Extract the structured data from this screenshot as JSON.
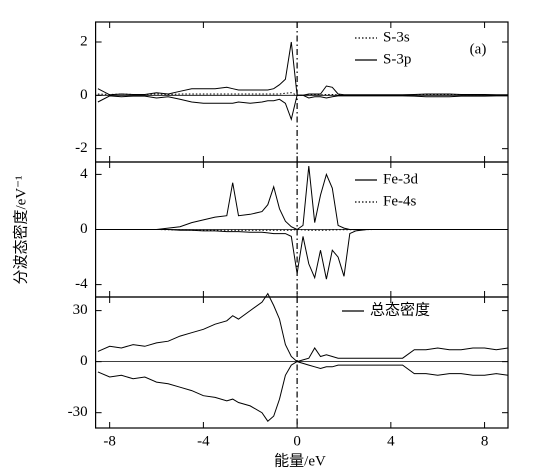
{
  "chart_data": [
    {
      "type": "line",
      "annotation": "(a)",
      "x": [
        -8.5,
        -8,
        -7.5,
        -7,
        -6.5,
        -6,
        -5.5,
        -5,
        -4.5,
        -4,
        -3.5,
        -3,
        -2.75,
        -2.5,
        -2,
        -1.5,
        -1.25,
        -1,
        -0.75,
        -0.5,
        -0.25,
        0,
        0.25,
        0.5,
        0.75,
        1,
        1.25,
        1.5,
        1.75,
        2,
        2.25,
        2.5,
        3,
        3.5,
        4,
        4.5,
        5,
        5.5,
        6,
        6.5,
        7,
        7.5,
        8,
        8.5,
        9
      ],
      "xlim": [
        -8.6,
        9
      ],
      "ylim": [
        -2.5,
        2.75
      ],
      "yticks": [
        -2,
        0,
        2
      ],
      "series": [
        {
          "name": "S-3s",
          "color": "#000000",
          "dash": "dotted",
          "values": [
            0.05,
            0.03,
            0.05,
            0.03,
            0.03,
            0.05,
            0.03,
            0.05,
            0.05,
            0.05,
            0.05,
            0.05,
            0.05,
            0.05,
            0.05,
            0.05,
            0.05,
            0.05,
            0.05,
            0.08,
            0.1,
            0,
            0,
            0.02,
            0.02,
            0.02,
            0.03,
            0.03,
            0.02,
            0.01,
            0.01,
            0.01,
            0.01,
            0.01,
            0.01,
            0.01,
            0.01,
            0.02,
            0.02,
            0.02,
            0.01,
            0.01,
            0.01,
            0.01,
            0.01
          ]
        },
        {
          "name": "S-3p",
          "color": "#000000",
          "dash": "solid",
          "values": [
            0.25,
            0.02,
            0.05,
            0.03,
            0.03,
            0.1,
            0.05,
            0.15,
            0.25,
            0.25,
            0.25,
            0.3,
            0.25,
            0.2,
            0.2,
            0.2,
            0.2,
            0.25,
            0.4,
            0.6,
            2.0,
            0,
            0,
            0.05,
            0.05,
            0.05,
            0.35,
            0.3,
            0.05,
            0.02,
            0.02,
            0.02,
            0.02,
            0.02,
            0.02,
            0.02,
            0.03,
            0.05,
            0.05,
            0.05,
            0.03,
            0.03,
            0.03,
            0.02,
            0.02
          ]
        },
        {
          "color": "#000000",
          "dash": "solid",
          "values": [
            -0.25,
            -0.02,
            -0.05,
            -0.03,
            -0.03,
            -0.1,
            -0.05,
            -0.15,
            -0.25,
            -0.3,
            -0.3,
            -0.3,
            -0.3,
            -0.25,
            -0.3,
            -0.25,
            -0.2,
            -0.2,
            -0.15,
            -0.3,
            -0.9,
            0,
            0,
            -0.1,
            -0.05,
            -0.05,
            -0.1,
            -0.05,
            -0.02,
            -0.02,
            -0.02,
            -0.02,
            -0.02,
            -0.02,
            -0.02,
            -0.02,
            -0.03,
            -0.05,
            -0.05,
            -0.05,
            -0.03,
            -0.03,
            -0.03,
            -0.02,
            -0.02
          ]
        }
      ]
    },
    {
      "type": "line",
      "y_label": "分波态密度/eV⁻¹",
      "x": [
        -8.5,
        -8,
        -7.5,
        -7,
        -6.5,
        -6,
        -5.5,
        -5,
        -4.5,
        -4,
        -3.5,
        -3,
        -2.75,
        -2.5,
        -2,
        -1.5,
        -1.25,
        -1,
        -0.75,
        -0.5,
        -0.25,
        0,
        0.25,
        0.5,
        0.75,
        1,
        1.25,
        1.5,
        1.75,
        2,
        2.25,
        2.5,
        3,
        3.5,
        4,
        4.5,
        5,
        5.5,
        6,
        6.5,
        7,
        7.5,
        8,
        8.5,
        9
      ],
      "xlim": [
        -8.6,
        9
      ],
      "ylim": [
        -4.9,
        4.9
      ],
      "yticks": [
        -4,
        0,
        4
      ],
      "series": [
        {
          "name": "Fe-3d",
          "color": "#000000",
          "dash": "solid",
          "values": [
            0,
            0,
            0,
            0,
            0,
            0,
            0.1,
            0.2,
            0.5,
            0.7,
            0.9,
            1.0,
            3.4,
            1.0,
            1.1,
            1.3,
            1.8,
            3.1,
            1.5,
            0.6,
            0.2,
            0,
            0.3,
            4.6,
            0.5,
            2.5,
            4.0,
            3.0,
            0.3,
            0.1,
            0,
            0,
            0,
            0,
            0,
            0,
            0,
            0,
            0,
            0,
            0,
            0,
            0,
            0,
            0
          ]
        },
        {
          "color": "#000000",
          "dash": "solid",
          "values": [
            0,
            0,
            0,
            0,
            0,
            0,
            0,
            -0.05,
            -0.05,
            -0.1,
            -0.1,
            -0.15,
            -0.15,
            -0.15,
            -0.2,
            -0.2,
            -0.25,
            -0.3,
            -0.3,
            -0.3,
            -0.5,
            -3.2,
            -0.5,
            -2.5,
            -3.5,
            -1.5,
            -3.6,
            -1.5,
            -2.0,
            -3.4,
            -0.3,
            -0.1,
            0,
            0,
            0,
            0,
            0,
            0,
            0,
            0,
            0,
            0,
            0,
            0,
            0
          ]
        },
        {
          "name": "Fe-4s",
          "color": "#000000",
          "dash": "dotted",
          "values": [
            0,
            0,
            0,
            0,
            0,
            0,
            -0.02,
            -0.03,
            -0.05,
            -0.05,
            -0.05,
            -0.05,
            -0.05,
            -0.05,
            -0.05,
            -0.05,
            -0.05,
            -0.05,
            -0.05,
            -0.05,
            -0.05,
            0,
            -0.03,
            -0.05,
            -0.05,
            -0.05,
            -0.05,
            -0.03,
            -0.02,
            -0.02,
            -0.02,
            -0.02,
            -0.01,
            0,
            0,
            0,
            0,
            0,
            0,
            0,
            0,
            0,
            0,
            0,
            0
          ]
        }
      ]
    },
    {
      "type": "line",
      "x_label": "能量/eV",
      "x": [
        -8.5,
        -8,
        -7.5,
        -7,
        -6.5,
        -6,
        -5.5,
        -5,
        -4.5,
        -4,
        -3.5,
        -3,
        -2.75,
        -2.5,
        -2,
        -1.5,
        -1.25,
        -1,
        -0.75,
        -0.5,
        -0.25,
        0,
        0.25,
        0.5,
        0.75,
        1,
        1.25,
        1.5,
        1.75,
        2,
        2.25,
        2.5,
        3,
        3.5,
        4,
        4.5,
        5,
        5.5,
        6,
        6.5,
        7,
        7.5,
        8,
        8.5,
        9
      ],
      "xlim": [
        -8.6,
        9
      ],
      "ylim": [
        -39,
        38
      ],
      "yticks": [
        -30,
        0,
        30
      ],
      "xticks": [
        -8,
        -4,
        0,
        4,
        8
      ],
      "series": [
        {
          "name": "总态密度",
          "color": "#000000",
          "dash": "solid",
          "values": [
            6,
            9,
            8,
            10,
            9,
            11,
            12,
            15,
            17,
            19,
            22,
            24,
            27,
            25,
            30,
            35,
            40,
            33,
            25,
            10,
            3,
            0,
            1,
            2,
            8,
            3,
            4,
            3,
            2,
            2,
            2,
            2,
            2,
            2,
            2,
            2,
            7,
            7,
            8,
            7,
            7,
            8,
            8,
            7,
            8
          ]
        },
        {
          "color": "#000000",
          "dash": "solid",
          "values": [
            -6,
            -9,
            -8,
            -10,
            -9,
            -12,
            -13,
            -15,
            -17,
            -20,
            -21,
            -23,
            -22,
            -24,
            -26,
            -30,
            -35,
            -32,
            -22,
            -8,
            -2,
            0,
            -1,
            -2,
            -3,
            -4,
            -3,
            -3,
            -2,
            -2,
            -2,
            -2,
            -2,
            -2,
            -2,
            -2,
            -7,
            -7,
            -8,
            -7,
            -7,
            -8,
            -8,
            -7,
            -8
          ]
        }
      ]
    }
  ]
}
